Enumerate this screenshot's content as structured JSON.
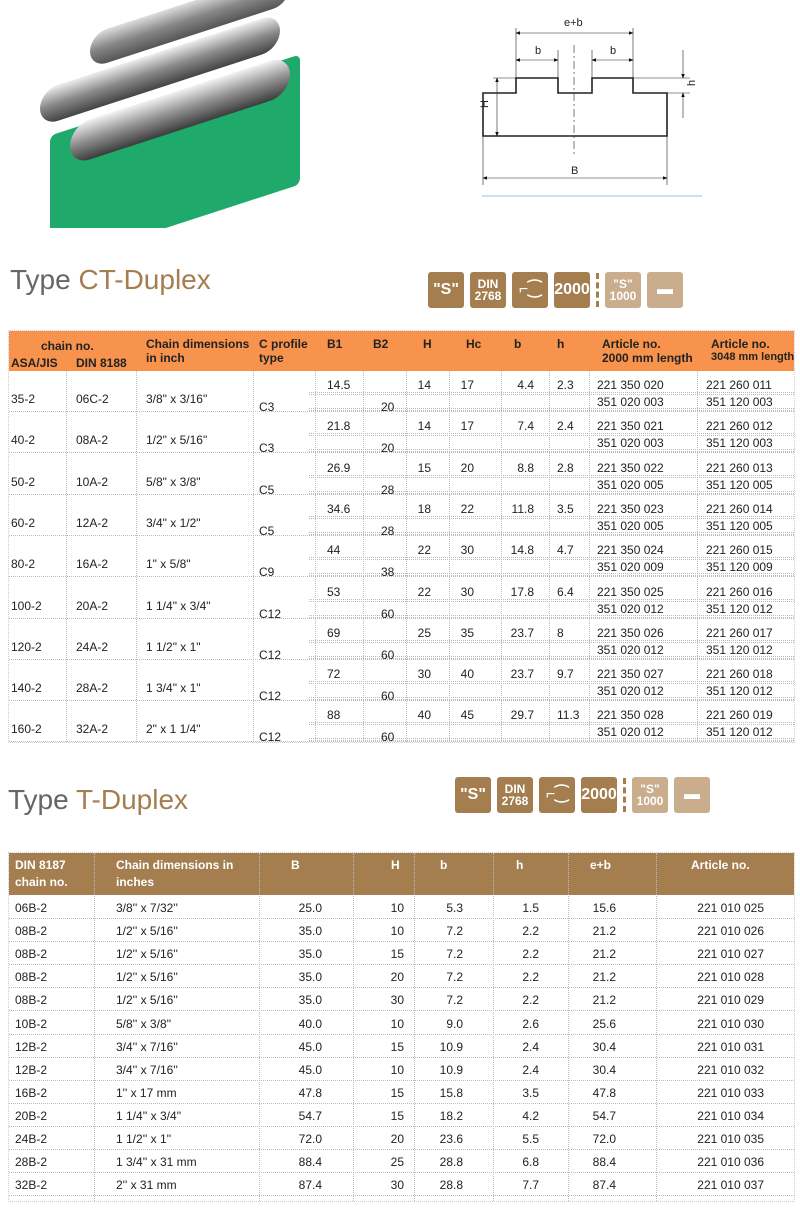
{
  "diagram": {
    "labels": {
      "eb": "e+b",
      "b1": "b",
      "b2": "b",
      "H": "H",
      "h": "h",
      "B": "B"
    }
  },
  "icons": [
    {
      "name": "s-standard-icon",
      "l1": "\"S\"",
      "l2": "",
      "light": false
    },
    {
      "name": "din-2768-icon",
      "l1": "DIN",
      "l2": "2768",
      "light": false
    },
    {
      "name": "profile-icon",
      "l1": "⌐⁐",
      "l2": "",
      "light": false
    },
    {
      "name": "length-2000-icon",
      "l1": "2000",
      "l2": "",
      "light": false
    },
    {
      "name": "s-1000-icon",
      "l1": "\"S\"",
      "l2": "1000",
      "light": true
    },
    {
      "name": "bars-icon",
      "l1": "▬",
      "l2": "",
      "light": true
    }
  ],
  "ct": {
    "title_prefix": "Type ",
    "title_accent": "CT-Duplex",
    "headers": {
      "chain_no": "chain no.",
      "asa": "ASA/JIS",
      "din": "DIN 8188",
      "dims1": "Chain dimensions",
      "dims2": "in inch",
      "cprof1": "C profile",
      "cprof2": "type",
      "B1": "B1",
      "B2": "B2",
      "H": "H",
      "Hc": "Hc",
      "b": "b",
      "h": "h",
      "art1a": "Article no.",
      "art1b": "2000 mm length",
      "art2a": "Article no.",
      "art2b": "3048 mm length"
    },
    "rows": [
      {
        "asa": "35-2",
        "din": "06C-2",
        "dims": "3/8\" x 3/16\"",
        "cprof": "C3",
        "B1": "14.5",
        "B2": "20",
        "H": "14",
        "Hc": "17",
        "b": "4.4",
        "h": "2.3",
        "art2000": [
          "221 350 020",
          "351 020 003"
        ],
        "art3048": [
          "221 260 011",
          "351 120 003"
        ]
      },
      {
        "asa": "40-2",
        "din": "08A-2",
        "dims": "1/2\" x 5/16\"",
        "cprof": "C3",
        "B1": "21.8",
        "B2": "20",
        "H": "14",
        "Hc": "17",
        "b": "7.4",
        "h": "2.4",
        "art2000": [
          "221 350 021",
          "351 020 003"
        ],
        "art3048": [
          "221 260 012",
          "351 120 003"
        ]
      },
      {
        "asa": "50-2",
        "din": "10A-2",
        "dims": "5/8\" x 3/8\"",
        "cprof": "C5",
        "B1": "26.9",
        "B2": "28",
        "H": "15",
        "Hc": "20",
        "b": "8.8",
        "h": "2.8",
        "art2000": [
          "221 350 022",
          "351 020 005"
        ],
        "art3048": [
          "221 260 013",
          "351 120 005"
        ]
      },
      {
        "asa": "60-2",
        "din": "12A-2",
        "dims": "3/4\" x 1/2\"",
        "cprof": "C5",
        "B1": "34.6",
        "B2": "28",
        "H": "18",
        "Hc": "22",
        "b": "11.8",
        "h": "3.5",
        "art2000": [
          "221 350 023",
          "351 020 005"
        ],
        "art3048": [
          "221 260 014",
          "351 120 005"
        ]
      },
      {
        "asa": "80-2",
        "din": "16A-2",
        "dims": "1\" x 5/8\"",
        "cprof": "C9",
        "B1": "44",
        "B2": "38",
        "H": "22",
        "Hc": "30",
        "b": "14.8",
        "h": "4.7",
        "art2000": [
          "221 350 024",
          "351 020 009"
        ],
        "art3048": [
          "221 260 015",
          "351 120 009"
        ]
      },
      {
        "asa": "100-2",
        "din": "20A-2",
        "dims": "1 1/4\" x 3/4\"",
        "cprof": "C12",
        "B1": "53",
        "B2": "60",
        "H": "22",
        "Hc": "30",
        "b": "17.8",
        "h": "6.4",
        "art2000": [
          "221 350 025",
          "351 020 012"
        ],
        "art3048": [
          "221 260 016",
          "351 120 012"
        ]
      },
      {
        "asa": "120-2",
        "din": "24A-2",
        "dims": "1 1/2\" x 1\"",
        "cprof": "C12",
        "B1": "69",
        "B2": "60",
        "H": "25",
        "Hc": "35",
        "b": "23.7",
        "h": "8",
        "art2000": [
          "221 350 026",
          "351 020 012"
        ],
        "art3048": [
          "221 260 017",
          "351 120 012"
        ]
      },
      {
        "asa": "140-2",
        "din": "28A-2",
        "dims": "1 3/4\" x 1\"",
        "cprof": "C12",
        "B1": "72",
        "B2": "60",
        "H": "30",
        "Hc": "40",
        "b": "23.7",
        "h": "9.7",
        "art2000": [
          "221 350 027",
          "351 020 012"
        ],
        "art3048": [
          "221 260 018",
          "351 120 012"
        ]
      },
      {
        "asa": "160-2",
        "din": "32A-2",
        "dims": "2\" x 1 1/4\"",
        "cprof": "C12",
        "B1": "88",
        "B2": "60",
        "H": "40",
        "Hc": "45",
        "b": "29.7",
        "h": "11.3",
        "art2000": [
          "221 350 028",
          "351 020 012"
        ],
        "art3048": [
          "221 260 019",
          "351 120 012"
        ]
      }
    ]
  },
  "t": {
    "title_prefix": "Type ",
    "title_accent": "T-Duplex",
    "headers": {
      "din1": "DIN 8187",
      "din2": "chain no.",
      "dims1": "Chain dimensions in",
      "dims2": "inches",
      "B": "B",
      "H": "H",
      "b": "b",
      "h": "h",
      "eb": "e+b",
      "art": "Article no."
    },
    "rows": [
      [
        "06B-2",
        "3/8'' x 7/32''",
        "25.0",
        "10",
        "5.3",
        "1.5",
        "15.6",
        "221 010 025"
      ],
      [
        "08B-2",
        "1/2'' x 5/16''",
        "35.0",
        "10",
        "7.2",
        "2.2",
        "21.2",
        "221 010 026"
      ],
      [
        "08B-2",
        "1/2'' x 5/16''",
        "35.0",
        "15",
        "7.2",
        "2.2",
        "21.2",
        "221 010 027"
      ],
      [
        "08B-2",
        "1/2'' x 5/16''",
        "35.0",
        "20",
        "7.2",
        "2.2",
        "21.2",
        "221 010 028"
      ],
      [
        "08B-2",
        "1/2'' x 5/16''",
        "35.0",
        "30",
        "7.2",
        "2.2",
        "21.2",
        "221 010 029"
      ],
      [
        "10B-2",
        "5/8'' x 3/8''",
        "40.0",
        "10",
        "9.0",
        "2.6",
        "25.6",
        "221 010 030"
      ],
      [
        "12B-2",
        "3/4'' x 7/16''",
        "45.0",
        "15",
        "10.9",
        "2.4",
        "30.4",
        "221 010 031"
      ],
      [
        "12B-2",
        "3/4'' x 7/16''",
        "45.0",
        "10",
        "10.9",
        "2.4",
        "30.4",
        "221 010 032"
      ],
      [
        "16B-2",
        "1'' x 17 mm",
        "47.8",
        "15",
        "15.8",
        "3.5",
        "47.8",
        "221 010 033"
      ],
      [
        "20B-2",
        "1 1/4'' x 3/4''",
        "54.7",
        "15",
        "18.2",
        "4.2",
        "54.7",
        "221 010 034"
      ],
      [
        "24B-2",
        "1 1/2'' x 1''",
        "72.0",
        "20",
        "23.6",
        "5.5",
        "72.0",
        "221 010 035"
      ],
      [
        "28B-2",
        "1 3/4'' x 31 mm",
        "88.4",
        "25",
        "28.8",
        "6.8",
        "88.4",
        "221 010 036"
      ],
      [
        "32B-2",
        "2'' x 31 mm",
        "87.4",
        "30",
        "28.8",
        "7.7",
        "87.4",
        "221 010 037"
      ]
    ]
  },
  "colors": {
    "ct_header": "#f7934c",
    "t_header": "#a47e4f",
    "accent": "#a47e4f",
    "guide_green": "#1fa96a"
  }
}
